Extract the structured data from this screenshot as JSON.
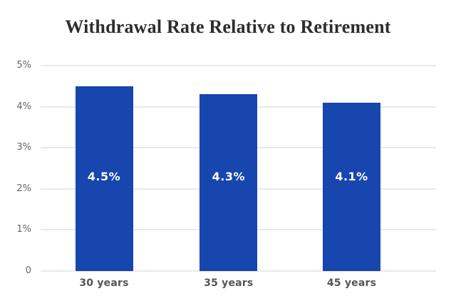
{
  "chart_data": {
    "type": "bar",
    "title": "Withdrawal Rate Relative to Retirement",
    "categories": [
      "30 years",
      "35 years",
      "45 years"
    ],
    "values": [
      4.5,
      4.3,
      4.1
    ],
    "bar_labels": [
      "4.5%",
      "4.3%",
      "4.1%"
    ],
    "xlabel": "",
    "ylabel": "",
    "ylim": [
      0,
      5
    ],
    "y_ticks": [
      {
        "value": 5,
        "label": "5%"
      },
      {
        "value": 4,
        "label": "4%"
      },
      {
        "value": 3,
        "label": "3%"
      },
      {
        "value": 2,
        "label": "2%"
      },
      {
        "value": 1,
        "label": "1%"
      },
      {
        "value": 0,
        "label": "0"
      }
    ],
    "grid": "horizontal",
    "legend": "none",
    "colors": {
      "bar": "#1646ae",
      "bar_label_text": "#ffffff",
      "gridline": "#e9e9e9",
      "title_text": "#2d2d2d",
      "y_tick_text": "#666666",
      "category_text": "#555555",
      "background": "#ffffff"
    }
  }
}
